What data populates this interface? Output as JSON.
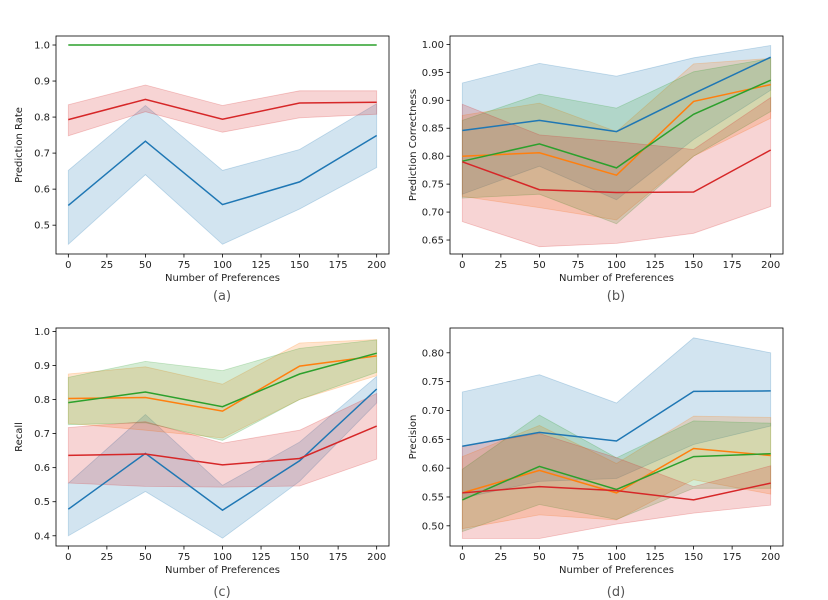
{
  "colors": {
    "blue": "#1f77b4",
    "orange": "#ff7f0e",
    "green": "#2ca02c",
    "red": "#d62728"
  },
  "chart_data": [
    {
      "type": "line",
      "panel_label": "(a)",
      "xlabel": "Number of Preferences",
      "ylabel": "Prediction Rate",
      "x": [
        0,
        50,
        100,
        150,
        200
      ],
      "xticks": [
        0,
        25,
        50,
        75,
        100,
        125,
        150,
        175,
        200
      ],
      "yticks": [
        0.5,
        0.6,
        0.7,
        0.8,
        0.9,
        1.0
      ],
      "ytick_labels": [
        "0.5",
        "0.6",
        "0.7",
        "0.8",
        "0.9",
        "1.0"
      ],
      "xlim": [
        -8,
        208
      ],
      "ylim": [
        0.42,
        1.025
      ],
      "grid": false,
      "series": [
        {
          "color": "blue",
          "values": [
            0.555,
            0.733,
            0.557,
            0.62,
            0.749
          ],
          "lower": [
            0.447,
            0.64,
            0.447,
            0.545,
            0.66
          ],
          "upper": [
            0.652,
            0.832,
            0.652,
            0.71,
            0.837
          ]
        },
        {
          "color": "red",
          "values": [
            0.793,
            0.849,
            0.794,
            0.839,
            0.841
          ],
          "lower": [
            0.748,
            0.815,
            0.758,
            0.798,
            0.808
          ],
          "upper": [
            0.834,
            0.889,
            0.832,
            0.873,
            0.873
          ]
        },
        {
          "color": "green",
          "values": [
            1.0,
            1.0,
            1.0,
            1.0,
            1.0
          ]
        }
      ]
    },
    {
      "type": "line",
      "panel_label": "(b)",
      "xlabel": "Number of Preferences",
      "ylabel": "Prediction Correctness",
      "x": [
        0,
        50,
        100,
        150,
        200
      ],
      "xticks": [
        0,
        25,
        50,
        75,
        100,
        125,
        150,
        175,
        200
      ],
      "yticks": [
        0.65,
        0.7,
        0.75,
        0.8,
        0.85,
        0.9,
        0.95,
        1.0
      ],
      "ytick_labels": [
        "0.65",
        "0.70",
        "0.75",
        "0.80",
        "0.85",
        "0.90",
        "0.95",
        "1.00"
      ],
      "xlim": [
        -8,
        208
      ],
      "ylim": [
        0.625,
        1.015
      ],
      "grid": false,
      "series": [
        {
          "color": "blue",
          "values": [
            0.846,
            0.864,
            0.844,
            0.912,
            0.977
          ],
          "lower": [
            0.732,
            0.782,
            0.722,
            0.83,
            0.918
          ],
          "upper": [
            0.931,
            0.966,
            0.943,
            0.976,
            0.998
          ]
        },
        {
          "color": "orange",
          "values": [
            0.8,
            0.806,
            0.766,
            0.898,
            0.928
          ],
          "lower": [
            0.728,
            0.708,
            0.686,
            0.8,
            0.868
          ],
          "upper": [
            0.873,
            0.895,
            0.844,
            0.965,
            0.975
          ]
        },
        {
          "color": "green",
          "values": [
            0.791,
            0.822,
            0.779,
            0.875,
            0.936
          ],
          "lower": [
            0.725,
            0.732,
            0.679,
            0.8,
            0.88
          ],
          "upper": [
            0.864,
            0.911,
            0.886,
            0.951,
            0.975
          ]
        },
        {
          "color": "red",
          "values": [
            0.79,
            0.74,
            0.735,
            0.736,
            0.811
          ],
          "lower": [
            0.683,
            0.638,
            0.644,
            0.662,
            0.71
          ],
          "upper": [
            0.893,
            0.838,
            0.826,
            0.812,
            0.905
          ]
        }
      ]
    },
    {
      "type": "line",
      "panel_label": "(c)",
      "xlabel": "Number of Preferences",
      "ylabel": "Recall",
      "x": [
        0,
        50,
        100,
        150,
        200
      ],
      "xticks": [
        0,
        25,
        50,
        75,
        100,
        125,
        150,
        175,
        200
      ],
      "yticks": [
        0.4,
        0.5,
        0.6,
        0.7,
        0.8,
        0.9,
        1.0
      ],
      "ytick_labels": [
        "0.4",
        "0.5",
        "0.6",
        "0.7",
        "0.8",
        "0.9",
        "1.0"
      ],
      "xlim": [
        -8,
        208
      ],
      "ylim": [
        0.37,
        1.01
      ],
      "grid": false,
      "series": [
        {
          "color": "blue",
          "values": [
            0.478,
            0.642,
            0.475,
            0.62,
            0.831
          ],
          "lower": [
            0.4,
            0.53,
            0.393,
            0.56,
            0.79
          ],
          "upper": [
            0.554,
            0.756,
            0.548,
            0.675,
            0.868
          ]
        },
        {
          "color": "orange",
          "values": [
            0.803,
            0.806,
            0.766,
            0.898,
            0.928
          ],
          "lower": [
            0.73,
            0.71,
            0.687,
            0.8,
            0.87
          ],
          "upper": [
            0.875,
            0.896,
            0.845,
            0.966,
            0.976
          ]
        },
        {
          "color": "green",
          "values": [
            0.791,
            0.822,
            0.779,
            0.875,
            0.936
          ],
          "lower": [
            0.726,
            0.732,
            0.68,
            0.8,
            0.88
          ],
          "upper": [
            0.865,
            0.912,
            0.885,
            0.95,
            0.975
          ]
        },
        {
          "color": "red",
          "values": [
            0.636,
            0.64,
            0.608,
            0.627,
            0.722
          ],
          "lower": [
            0.555,
            0.545,
            0.543,
            0.546,
            0.625
          ],
          "upper": [
            0.718,
            0.735,
            0.672,
            0.71,
            0.818
          ]
        }
      ]
    },
    {
      "type": "line",
      "panel_label": "(d)",
      "xlabel": "Number of Preferences",
      "ylabel": "Precision",
      "x": [
        0,
        50,
        100,
        150,
        200
      ],
      "xticks": [
        0,
        25,
        50,
        75,
        100,
        125,
        150,
        175,
        200
      ],
      "yticks": [
        0.5,
        0.55,
        0.6,
        0.65,
        0.7,
        0.75,
        0.8
      ],
      "ytick_labels": [
        "0.50",
        "0.55",
        "0.60",
        "0.65",
        "0.70",
        "0.75",
        "0.80"
      ],
      "xlim": [
        -8,
        208
      ],
      "ylim": [
        0.465,
        0.843
      ],
      "grid": false,
      "series": [
        {
          "color": "blue",
          "values": [
            0.638,
            0.662,
            0.647,
            0.733,
            0.734
          ],
          "lower": [
            0.548,
            0.577,
            0.582,
            0.641,
            0.673
          ],
          "upper": [
            0.732,
            0.762,
            0.713,
            0.826,
            0.8
          ]
        },
        {
          "color": "orange",
          "values": [
            0.557,
            0.596,
            0.557,
            0.634,
            0.622
          ],
          "lower": [
            0.495,
            0.519,
            0.51,
            0.58,
            0.555
          ],
          "upper": [
            0.62,
            0.674,
            0.608,
            0.69,
            0.688
          ]
        },
        {
          "color": "green",
          "values": [
            0.545,
            0.603,
            0.563,
            0.62,
            0.625
          ],
          "lower": [
            0.49,
            0.537,
            0.511,
            0.565,
            0.565
          ],
          "upper": [
            0.598,
            0.692,
            0.618,
            0.682,
            0.678
          ]
        },
        {
          "color": "red",
          "values": [
            0.557,
            0.568,
            0.561,
            0.545,
            0.574
          ],
          "lower": [
            0.478,
            0.478,
            0.503,
            0.522,
            0.536
          ],
          "upper": [
            0.638,
            0.66,
            0.618,
            0.568,
            0.604
          ]
        }
      ]
    }
  ]
}
